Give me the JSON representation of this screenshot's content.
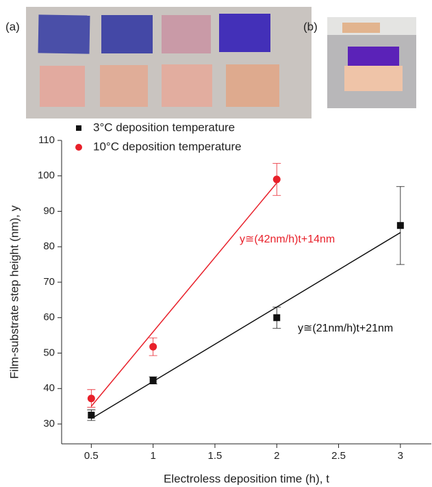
{
  "panels": [
    {
      "label": "(a)"
    },
    {
      "label": "(b)"
    }
  ],
  "chart_data": {
    "type": "scatter",
    "x_label": "Electroless deposition time (h), t",
    "y_label": "Film-substrate step height (nm), y",
    "xlim": [
      0.26,
      3.25
    ],
    "ylim": [
      24.4,
      110
    ],
    "xticks": [
      0.5,
      1.0,
      1.5,
      2.0,
      2.5,
      3.0
    ],
    "yticks": [
      30,
      40,
      50,
      60,
      70,
      80,
      90,
      100,
      110
    ],
    "series": [
      {
        "name": "3°C deposition temperature",
        "color": "#111111",
        "marker": "square",
        "x": [
          0.5,
          1.0,
          2.0,
          3.0
        ],
        "values": [
          32.5,
          42.3,
          60,
          86
        ],
        "errors": [
          1.5,
          1,
          3,
          11
        ],
        "fit_x": [
          0.5,
          3.0
        ],
        "fit_values": [
          31.5,
          84
        ],
        "fit_label": "y≅(21nm/h)t+21nm"
      },
      {
        "name": "10°C deposition temperature",
        "color": "#e8202a",
        "marker": "circle",
        "x": [
          0.5,
          1.0,
          2.0
        ],
        "values": [
          37.2,
          51.8,
          99
        ],
        "errors": [
          2.5,
          2.5,
          4.5
        ],
        "fit_x": [
          0.5,
          2.0
        ],
        "fit_values": [
          35,
          98
        ],
        "fit_label": "y≅(42nm/h)t+14nm"
      }
    ]
  }
}
